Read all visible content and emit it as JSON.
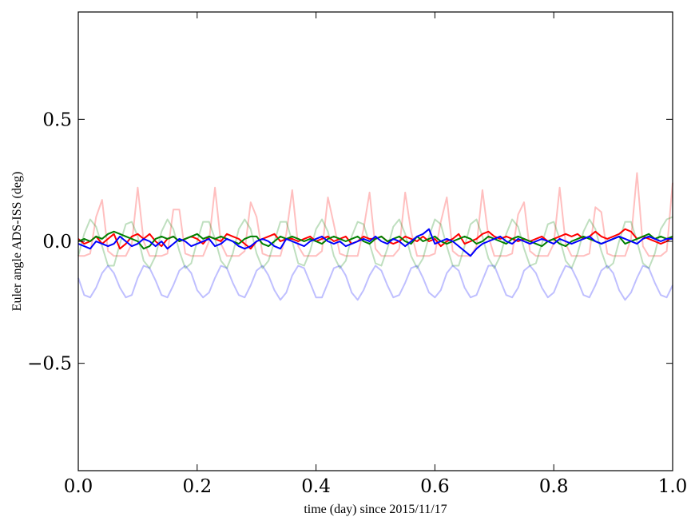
{
  "chart_data": {
    "type": "line",
    "title": "",
    "xlabel": "time (day) since 2015/11/17",
    "ylabel": "Euler angle ADS-ISS (deg)",
    "xlim": [
      0,
      1
    ],
    "ylim": [
      -0.94,
      0.94
    ],
    "xticks": [
      0.0,
      0.2,
      0.4,
      0.6,
      0.8,
      1.0
    ],
    "xtick_labels": [
      "0.0",
      "0.2",
      "0.4",
      "0.6",
      "0.8",
      "1.0"
    ],
    "yticks": [
      0.5,
      0.0,
      -0.5
    ],
    "ytick_labels": [
      "0.5",
      "0.0",
      "−0.5"
    ],
    "grid": false,
    "x_sampling": {
      "start": 0,
      "stop": 1,
      "spacing": "even"
    },
    "series": [
      {
        "color": "#ff0000",
        "opacity": 0.25,
        "values": [
          -0.06,
          -0.06,
          -0.05,
          0.1,
          0.17,
          -0.04,
          -0.06,
          -0.06,
          -0.06,
          -0.01,
          0.22,
          0.0,
          -0.06,
          -0.06,
          -0.06,
          -0.05,
          0.13,
          0.13,
          -0.05,
          -0.06,
          -0.06,
          -0.06,
          0.0,
          0.22,
          -0.01,
          -0.06,
          -0.06,
          -0.06,
          -0.04,
          0.16,
          0.1,
          -0.05,
          -0.06,
          -0.06,
          -0.06,
          0.03,
          0.21,
          -0.02,
          -0.06,
          -0.06,
          -0.06,
          -0.04,
          0.18,
          0.07,
          -0.05,
          -0.06,
          -0.06,
          -0.06,
          0.05,
          0.2,
          -0.03,
          -0.06,
          -0.06,
          -0.06,
          -0.03,
          0.2,
          0.04,
          -0.06,
          -0.06,
          -0.06,
          -0.05,
          0.08,
          0.18,
          -0.04,
          -0.06,
          -0.06,
          -0.06,
          -0.02,
          0.21,
          0.02,
          -0.06,
          -0.06,
          -0.06,
          -0.05,
          0.11,
          0.16,
          -0.04,
          -0.06,
          -0.06,
          -0.06,
          -0.01,
          0.22,
          -0.01,
          -0.06,
          -0.06,
          -0.06,
          -0.05,
          0.14,
          0.12,
          -0.05,
          -0.06,
          -0.06,
          -0.06,
          0.01,
          0.28,
          -0.02,
          -0.06,
          -0.06,
          -0.06,
          -0.04,
          0.24
        ]
      },
      {
        "color": "#008000",
        "opacity": 0.25,
        "values": [
          -0.06,
          0.03,
          0.09,
          0.06,
          -0.02,
          -0.1,
          -0.1,
          -0.01,
          0.07,
          0.08,
          0.02,
          -0.08,
          -0.11,
          -0.06,
          0.04,
          0.09,
          0.05,
          -0.04,
          -0.11,
          -0.09,
          0.0,
          0.08,
          0.08,
          0.01,
          -0.08,
          -0.11,
          -0.05,
          0.05,
          0.09,
          0.05,
          -0.05,
          -0.11,
          -0.08,
          0.0,
          0.08,
          0.08,
          0.0,
          -0.09,
          -0.1,
          -0.04,
          0.05,
          0.09,
          0.04,
          -0.06,
          -0.11,
          -0.08,
          0.02,
          0.08,
          0.07,
          -0.01,
          -0.09,
          -0.1,
          -0.03,
          0.06,
          0.09,
          0.03,
          -0.06,
          -0.11,
          -0.07,
          0.02,
          0.09,
          0.07,
          -0.02,
          -0.1,
          -0.1,
          -0.02,
          0.07,
          0.09,
          0.02,
          -0.07,
          -0.11,
          -0.06,
          0.03,
          0.09,
          0.06,
          -0.03,
          -0.1,
          -0.09,
          -0.01,
          0.07,
          0.08,
          0.01,
          -0.08,
          -0.11,
          -0.05,
          0.04,
          0.09,
          0.05,
          -0.04,
          -0.11,
          -0.09,
          0.0,
          0.08,
          0.08,
          0.0,
          -0.09,
          -0.11,
          -0.05,
          0.05,
          0.09,
          0.1
        ]
      },
      {
        "color": "#0000ff",
        "opacity": 0.25,
        "values": [
          -0.15,
          -0.22,
          -0.23,
          -0.19,
          -0.13,
          -0.1,
          -0.13,
          -0.19,
          -0.23,
          -0.22,
          -0.15,
          -0.1,
          -0.11,
          -0.16,
          -0.22,
          -0.23,
          -0.18,
          -0.12,
          -0.1,
          -0.13,
          -0.2,
          -0.23,
          -0.21,
          -0.15,
          -0.1,
          -0.11,
          -0.17,
          -0.22,
          -0.23,
          -0.18,
          -0.12,
          -0.1,
          -0.14,
          -0.2,
          -0.24,
          -0.21,
          -0.14,
          -0.1,
          -0.11,
          -0.17,
          -0.23,
          -0.23,
          -0.17,
          -0.11,
          -0.1,
          -0.14,
          -0.21,
          -0.24,
          -0.2,
          -0.14,
          -0.1,
          -0.12,
          -0.18,
          -0.23,
          -0.22,
          -0.17,
          -0.11,
          -0.1,
          -0.15,
          -0.21,
          -0.23,
          -0.2,
          -0.13,
          -0.1,
          -0.12,
          -0.19,
          -0.23,
          -0.22,
          -0.16,
          -0.1,
          -0.1,
          -0.16,
          -0.22,
          -0.23,
          -0.19,
          -0.12,
          -0.1,
          -0.13,
          -0.19,
          -0.23,
          -0.21,
          -0.15,
          -0.1,
          -0.11,
          -0.16,
          -0.22,
          -0.23,
          -0.18,
          -0.12,
          -0.1,
          -0.13,
          -0.2,
          -0.24,
          -0.21,
          -0.15,
          -0.1,
          -0.11,
          -0.17,
          -0.22,
          -0.23,
          -0.18
        ]
      },
      {
        "color": "#ff0000",
        "opacity": 1,
        "values": [
          0.01,
          -0.01,
          0.0,
          0.02,
          -0.01,
          0.01,
          0.03,
          -0.03,
          -0.01,
          0.02,
          0.03,
          0.01,
          0.03,
          0.0,
          -0.02,
          0.01,
          0.02,
          0.0,
          0.01,
          0.02,
          0.01,
          -0.01,
          0.02,
          0.01,
          0.0,
          0.03,
          0.02,
          0.01,
          -0.01,
          -0.03,
          0.0,
          0.01,
          0.02,
          0.03,
          0.0,
          0.01,
          0.01,
          0.0,
          0.01,
          0.02,
          0.0,
          0.01,
          0.02,
          0.0,
          0.01,
          0.02,
          -0.01,
          0.0,
          0.02,
          0.01,
          0.01,
          0.02,
          0.0,
          -0.01,
          0.0,
          0.02,
          0.01,
          0.0,
          0.02,
          0.0,
          0.01,
          -0.02,
          0.0,
          0.01,
          0.03,
          -0.01,
          0.0,
          0.01,
          0.03,
          0.04,
          0.02,
          0.01,
          0.02,
          0.01,
          0.0,
          0.01,
          0.0,
          0.01,
          0.02,
          0.0,
          0.01,
          0.02,
          0.03,
          0.02,
          0.03,
          0.01,
          0.02,
          0.04,
          0.02,
          0.01,
          0.02,
          0.03,
          0.05,
          0.04,
          0.01,
          0.02,
          0.01,
          0.0,
          -0.01,
          0.0,
          0.02
        ]
      },
      {
        "color": "#008000",
        "opacity": 1,
        "values": [
          0.0,
          0.01,
          0.0,
          0.02,
          0.01,
          0.03,
          0.04,
          0.03,
          0.02,
          0.01,
          0.0,
          -0.03,
          -0.02,
          0.01,
          0.02,
          0.01,
          0.02,
          0.0,
          0.01,
          0.02,
          0.03,
          0.01,
          0.02,
          0.01,
          0.02,
          0.01,
          0.0,
          -0.01,
          0.01,
          0.02,
          0.02,
          -0.01,
          -0.02,
          0.0,
          0.02,
          0.01,
          0.02,
          0.01,
          0.0,
          0.01,
          0.0,
          -0.01,
          0.01,
          0.02,
          0.01,
          0.0,
          0.01,
          0.02,
          0.0,
          -0.01,
          0.01,
          0.02,
          0.0,
          0.01,
          0.02,
          0.0,
          -0.01,
          0.02,
          0.0,
          0.01,
          0.02,
          0.0,
          -0.01,
          0.0,
          0.01,
          0.02,
          0.01,
          -0.01,
          0.0,
          0.02,
          0.01,
          0.0,
          -0.01,
          0.01,
          0.02,
          0.01,
          0.0,
          -0.01,
          -0.02,
          0.0,
          0.01,
          -0.01,
          -0.02,
          0.0,
          0.01,
          0.02,
          0.01,
          0.0,
          -0.01,
          0.0,
          0.01,
          0.02,
          -0.01,
          0.0,
          0.01,
          0.02,
          0.03,
          0.01,
          0.02,
          0.01,
          0.02
        ]
      },
      {
        "color": "#0000ff",
        "opacity": 1,
        "values": [
          -0.01,
          -0.02,
          -0.03,
          0.0,
          -0.01,
          -0.02,
          -0.01,
          0.02,
          0.0,
          -0.02,
          -0.01,
          0.01,
          0.0,
          -0.02,
          0.0,
          -0.03,
          -0.01,
          0.01,
          0.0,
          -0.02,
          -0.01,
          0.0,
          0.01,
          -0.02,
          -0.01,
          0.01,
          0.0,
          -0.02,
          -0.03,
          -0.02,
          0.0,
          0.01,
          0.0,
          -0.02,
          -0.03,
          0.01,
          0.0,
          -0.01,
          -0.02,
          0.0,
          0.01,
          0.02,
          0.0,
          -0.01,
          0.0,
          -0.02,
          -0.01,
          0.0,
          0.01,
          0.0,
          0.02,
          0.0,
          -0.01,
          0.01,
          0.0,
          -0.02,
          0.0,
          0.02,
          0.03,
          0.05,
          -0.01,
          0.0,
          0.01,
          0.0,
          -0.02,
          -0.04,
          -0.06,
          -0.03,
          -0.01,
          0.0,
          0.01,
          0.02,
          0.0,
          -0.01,
          0.01,
          0.0,
          -0.01,
          0.0,
          0.01,
          0.0,
          -0.01,
          0.01,
          0.0,
          -0.01,
          0.0,
          0.01,
          0.02,
          0.0,
          -0.01,
          0.0,
          0.01,
          0.02,
          0.01,
          0.0,
          -0.01,
          0.01,
          0.02,
          0.01,
          0.0,
          0.01,
          0.01
        ]
      }
    ]
  }
}
